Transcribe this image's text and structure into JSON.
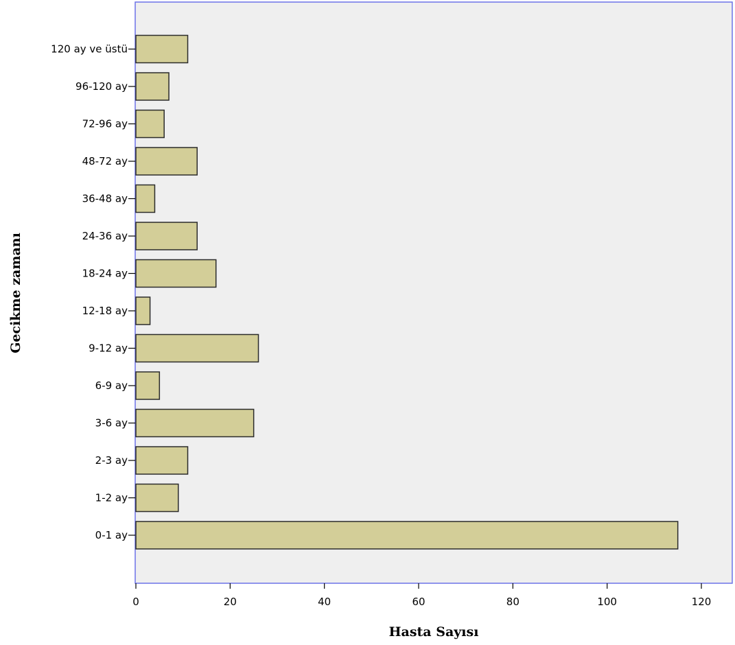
{
  "chart_data": {
    "type": "bar",
    "orientation": "horizontal",
    "categories": [
      "0-1 ay",
      "1-2 ay",
      "2-3 ay",
      "3-6 ay",
      "6-9 ay",
      "9-12 ay",
      "12-18 ay",
      "18-24 ay",
      "24-36 ay",
      "36-48 ay",
      "48-72 ay",
      "72-96 ay",
      "96-120 ay",
      "120 ay ve üstü"
    ],
    "values": [
      115,
      9,
      11,
      25,
      5,
      26,
      3,
      17,
      13,
      4,
      13,
      6,
      7,
      11
    ],
    "title": "",
    "xlabel": "Hasta Sayısı",
    "ylabel": "Gecikme zamanı",
    "xlim": [
      0,
      126
    ],
    "xticks": [
      0,
      20,
      40,
      60,
      80,
      100,
      120
    ],
    "grid": false,
    "legend": "none",
    "colors": {
      "bar_fill": "#d3ce98",
      "bar_stroke": "#2b2b2b",
      "plot_background": "#efefef",
      "plot_border": "#6b72e8"
    }
  }
}
